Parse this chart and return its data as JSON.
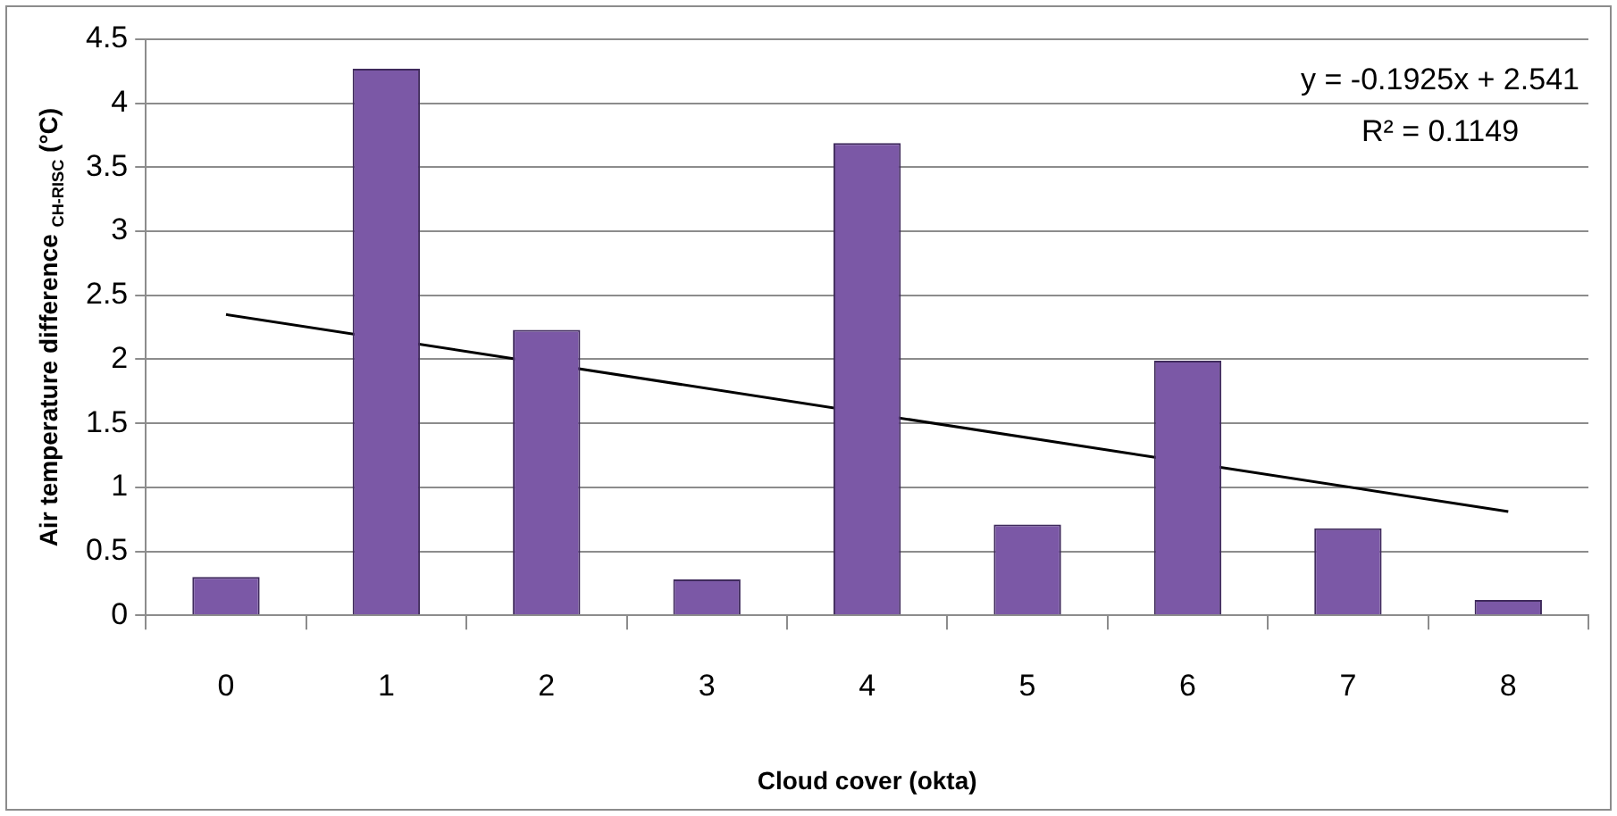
{
  "chart_data": {
    "type": "bar",
    "xlabel": "Cloud cover (okta)",
    "ylabel": "Air temperature difference $_{CH-RISC}$ (°C)",
    "categories": [
      "0",
      "1",
      "2",
      "3",
      "4",
      "5",
      "6",
      "7",
      "8"
    ],
    "series": [
      {
        "color": "#7b58a6",
        "values": [
          0.3,
          4.27,
          2.23,
          0.28,
          3.69,
          0.71,
          1.99,
          0.68,
          0.12
        ]
      },
      {
        "type": "line",
        "color": "#000000",
        "x": [
          "0",
          "8"
        ],
        "values": [
          2.35,
          0.81
        ]
      }
    ],
    "ylim": [
      0,
      4.5
    ],
    "yticks": [
      0,
      0.5,
      1,
      1.5,
      2,
      2.5,
      3,
      3.5,
      4,
      4.5
    ],
    "grid": "y",
    "marker": "none",
    "annotations": [
      "y = -0.1925x + 2.541",
      "R² = 0.1149"
    ]
  }
}
